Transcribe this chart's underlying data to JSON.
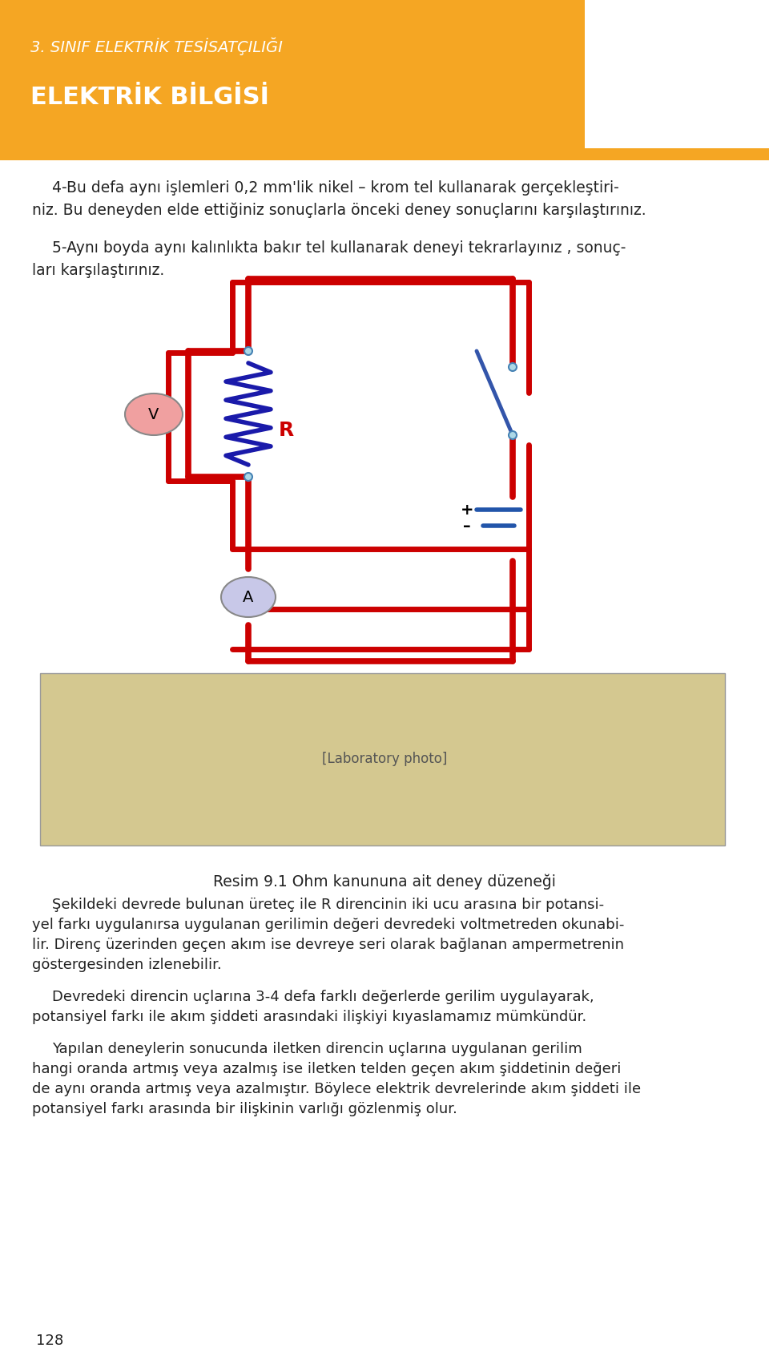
{
  "page_bg": "#ffffff",
  "header_bg": "#F5A623",
  "header_subtitle": "3. SINIF ELEKTRİK TESİSATÇILIĞI",
  "header_title": "ELEKTRİK BİLGİSİ",
  "header_subtitle_color": "#ffffff",
  "header_title_color": "#ffffff",
  "orange_bar_color": "#F5A623",
  "text_color": "#222222",
  "circuit_red": "#CC0000",
  "circuit_blue": "#1a1aaa",
  "resistor_color": "#1a1aaa",
  "voltmeter_fill": "#f0a0a0",
  "ammeter_fill": "#c8c8e8",
  "paragraph1": "4-Bu defa aynı işlemleri 0,2 mm'lik nikel – krom tel kullanarak gerçekleştiri-\nniz. Bu deneyden elde ettiğiniz sonuçlarla önceki deney sonuçlarını karşılaştırınız.",
  "paragraph2": "5-Aynı boyda aynı kalınlıkta bakır tel kullanarak deneyi tekrarlayınız , sonuç-\nları karşılaştırınız.",
  "caption": "Resim 9.1 Ohm kanununa ait deney düzeneği",
  "body1": "Şekildeki devrede bulunan üreteç ile R direncinin iki ucu arasına bir potansi-\nyel farkı uygulanırsa uygulanan gerilimin değeri devredeki voltmetreden okunabi-\nlir. Direnç üzerinden geçen akım ise devreye seri olarak bağlanan ampermetrenin\ngöstergesinden izlenebilir.",
  "body2": "Devredeki direncin uçlarına 3-4 defa farklı değerlerde gerilim uygulayarak,\npotansiyel farkı ile akım şiddeti arasındaki ilişkiyi kıyaslamamız mümkündür.",
  "body3": "Yapılan deneylerin sonucunda iletken direncin uçlarına uygulanan gerilim\nhangi oranda artmış veya azalmış ise iletken telden geçen akım şiddetinin değeri\nde aynı oranda artmış veya azalmıştır. Böylece elektrik devrelerinde akım şiddeti ile\npotansiyel farkı arasında bir ilişkinin varlığı gözlenmiş olur.",
  "page_number": "128"
}
